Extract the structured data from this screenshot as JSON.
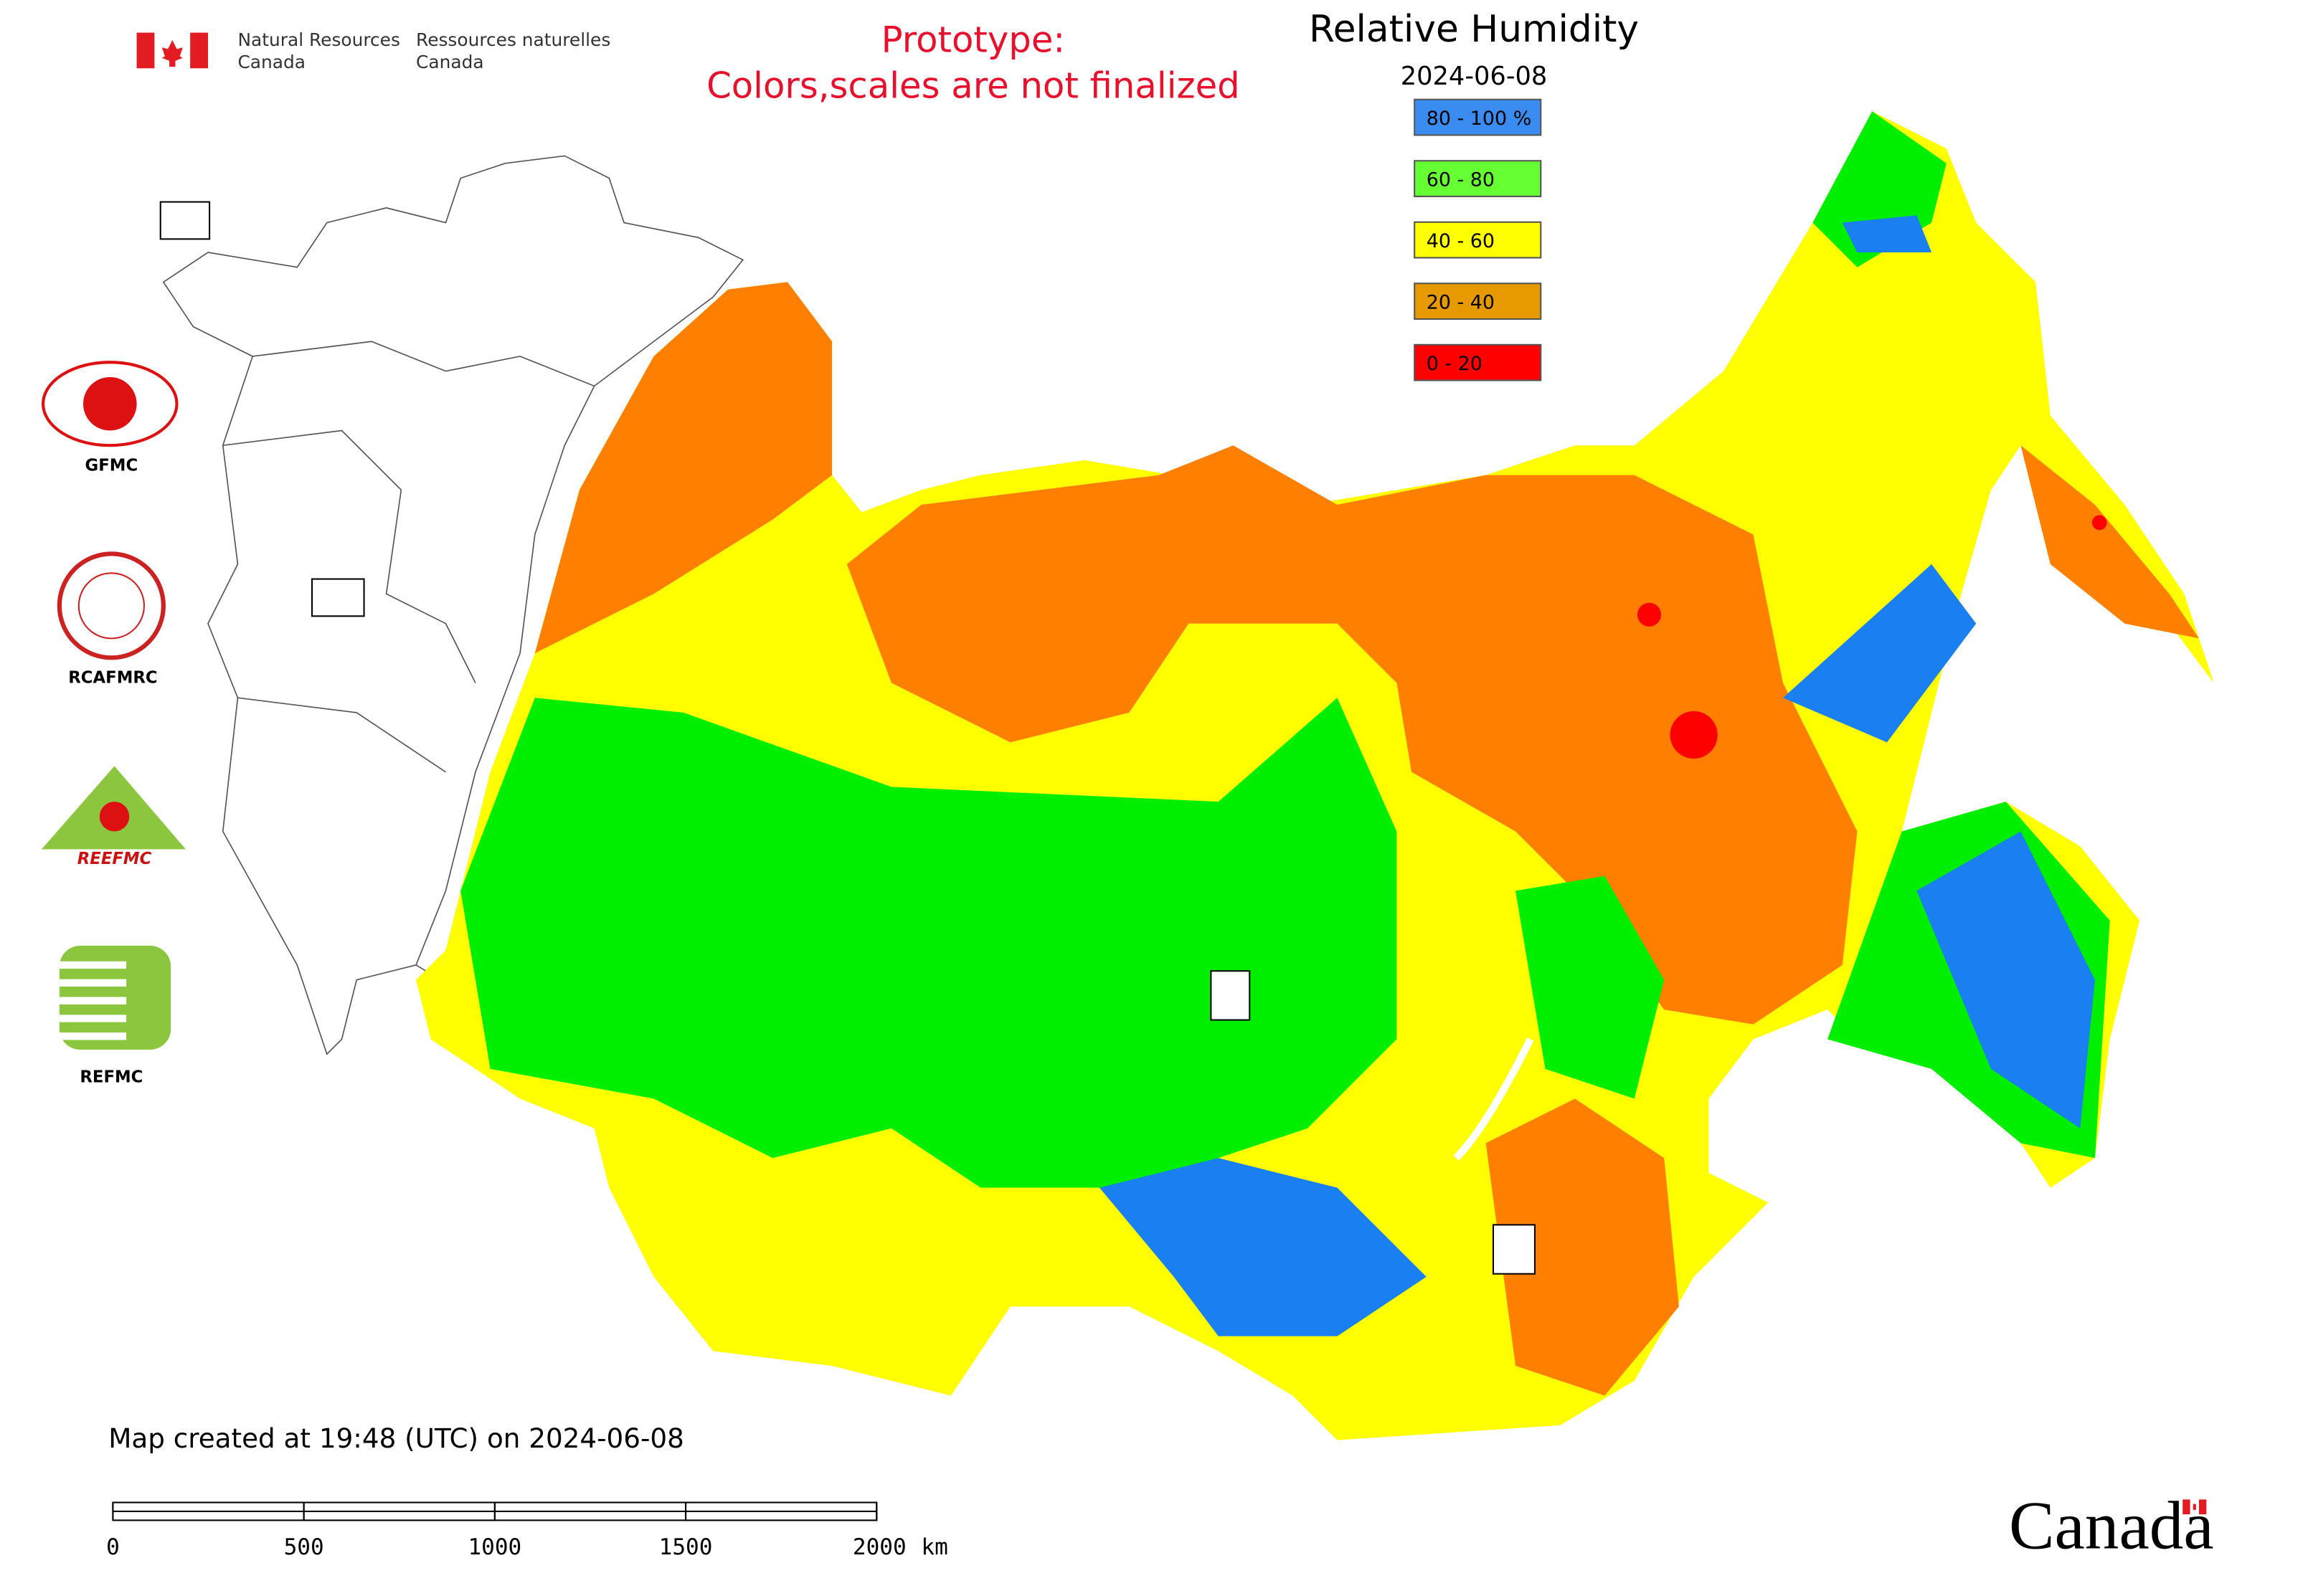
{
  "header": {
    "agency_en": [
      "Natural Resources",
      "Canada"
    ],
    "agency_fr": [
      "Ressources naturelles",
      "Canada"
    ]
  },
  "notice": [
    "Prototype:",
    "Colors,scales are not finalized"
  ],
  "title": "Relative Humidity",
  "date": "2024-06-08",
  "legend": [
    {
      "label": "80 - 100 %",
      "color": "#3b8cf0"
    },
    {
      "label": "60 - 80",
      "color": "#66ff33"
    },
    {
      "label": "40 - 60",
      "color": "#ffff00"
    },
    {
      "label": "20 - 40",
      "color": "#e69a00"
    },
    {
      "label": "0 - 20",
      "color": "#ff0000"
    }
  ],
  "logos": [
    "GFMC",
    "RCAFMRC",
    "REEFMC",
    "REFMC"
  ],
  "footer": {
    "created": "Map created at 19:48 (UTC) on 2024-06-08"
  },
  "scale_bar": {
    "ticks": [
      0,
      500,
      1000,
      1500,
      2000
    ],
    "unit": "km"
  },
  "wordmark": "Canada"
}
